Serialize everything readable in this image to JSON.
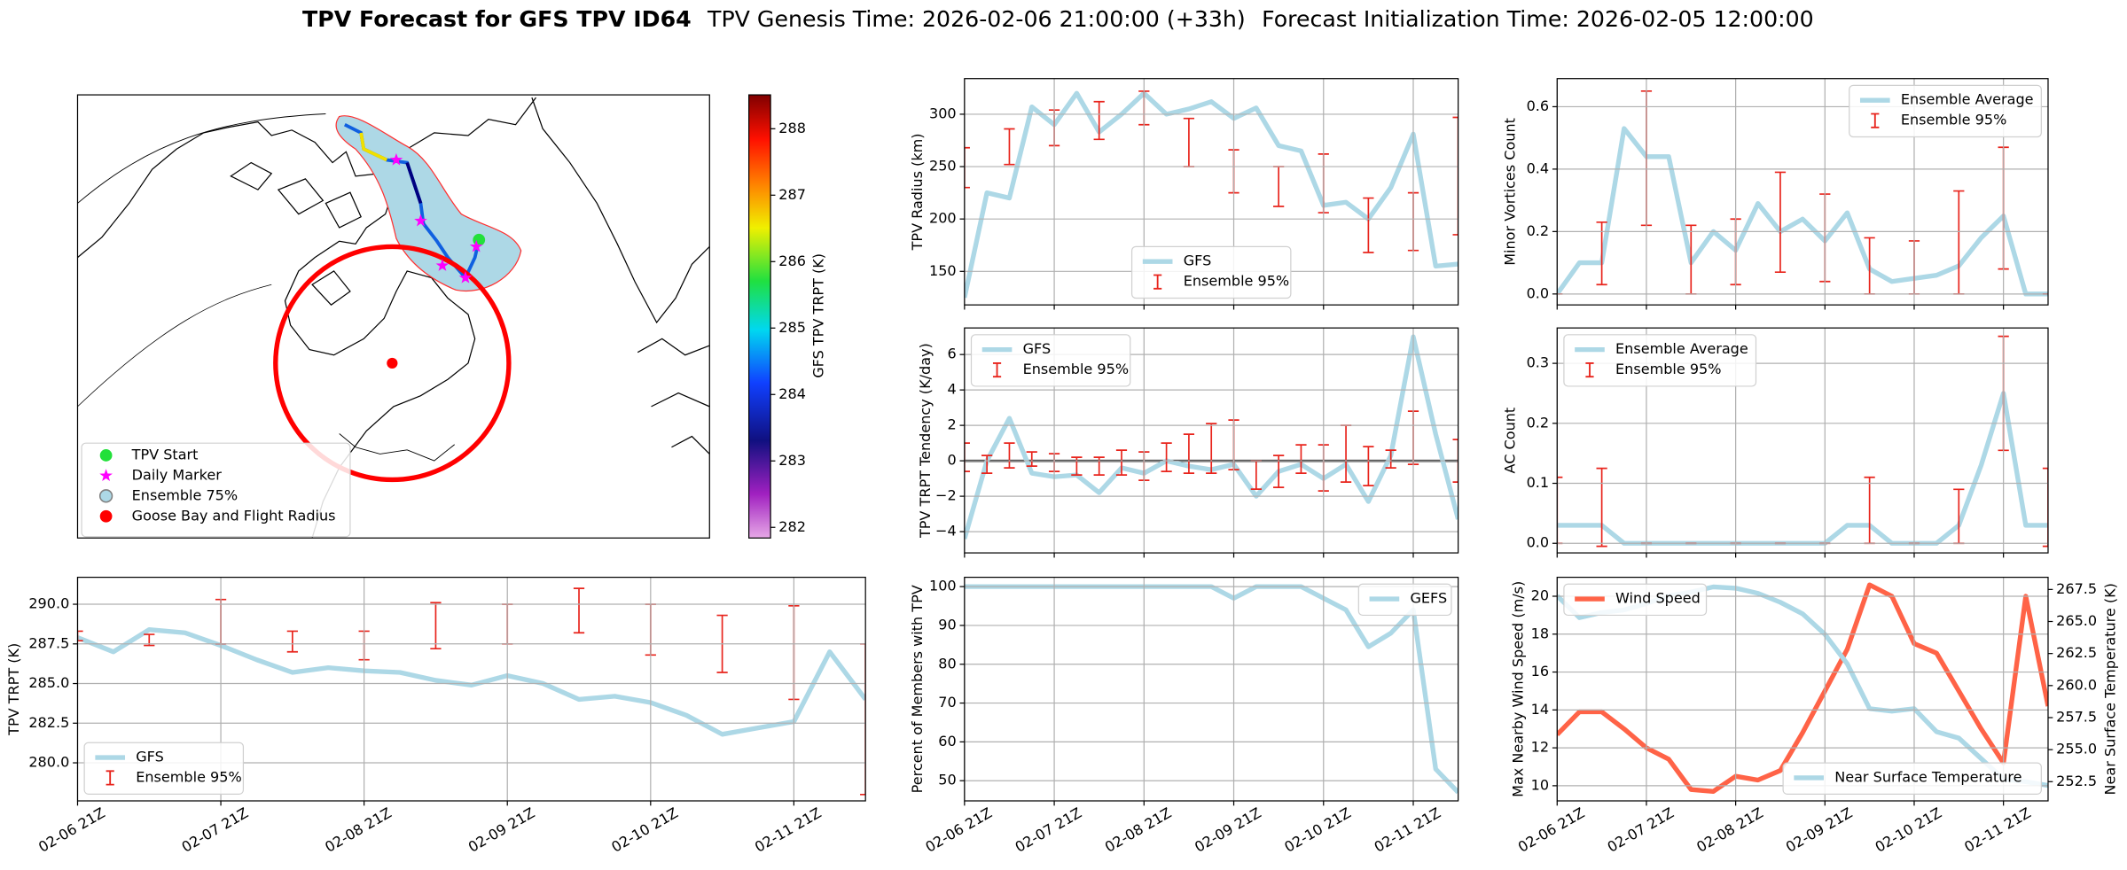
{
  "title": "TPV Forecast for GFS TPV ID64",
  "genesis": "TPV Genesis Time: 2026-02-06 21:00:00 (+33h)",
  "initialization": "Forecast Initialization Time: 2026-02-05 12:00:00",
  "chart_data": [
    {
      "type": "map",
      "legend": [
        {
          "name": "TPV Start",
          "color": "#22e03a"
        },
        {
          "name": "Daily Marker",
          "color": "#ff00ff"
        },
        {
          "name": "Ensemble 75%",
          "color": "#add8e6"
        },
        {
          "name": "Goose Bay and Flight Radius",
          "color": "#ff0000"
        }
      ],
      "colorbar": {
        "label": "GFS TPV TRPT (K)",
        "lim": [
          281.84,
          288.51
        ],
        "ticks": [
          282,
          283,
          284,
          285,
          286,
          287,
          288
        ]
      }
    },
    {
      "type": "line",
      "ylabel": "TPV Radius (km)",
      "x": [
        0,
        6,
        12,
        18,
        24,
        30,
        36,
        42,
        48,
        54,
        60,
        66,
        72,
        78,
        84,
        90,
        96,
        102,
        108,
        114,
        120,
        126,
        132
      ],
      "xlim": [
        0,
        132
      ],
      "xticks": [
        0,
        24,
        48,
        72,
        96,
        120
      ],
      "ylim": [
        118,
        334
      ],
      "yticks": [
        150,
        200,
        250,
        300
      ],
      "grid": true,
      "legend": "lower center",
      "series": [
        {
          "name": "GFS",
          "color": "#add8e6",
          "values": [
            125,
            225,
            220,
            307,
            290,
            320,
            283,
            300,
            320,
            300,
            305,
            312,
            296,
            306,
            270,
            265,
            213,
            216,
            200,
            230,
            281,
            155,
            157
          ]
        }
      ],
      "errorbars": {
        "name": "Ensemble 95%",
        "color": "#e8241c",
        "x": [
          0,
          12,
          24,
          36,
          48,
          60,
          72,
          84,
          96,
          108,
          120,
          132
        ],
        "values": [
          249,
          269,
          287,
          294,
          306,
          273,
          245.5,
          231,
          234,
          194,
          197.5,
          241
        ],
        "errors": [
          19,
          17,
          17,
          18,
          16,
          23,
          20.5,
          19,
          28,
          26,
          27.5,
          56
        ]
      }
    },
    {
      "type": "line",
      "ylabel": "Minor Vortices Count",
      "x": [
        0,
        6,
        12,
        18,
        24,
        30,
        36,
        42,
        48,
        54,
        60,
        66,
        72,
        78,
        84,
        90,
        96,
        102,
        108,
        114,
        120,
        126,
        132
      ],
      "xlim": [
        0,
        132
      ],
      "xticks": [
        0,
        24,
        48,
        72,
        96,
        120
      ],
      "ylim": [
        -0.035,
        0.69
      ],
      "yticks": [
        {
          "value": 0,
          "label": "0.0"
        },
        {
          "value": 0.2,
          "label": "0.2"
        },
        {
          "value": 0.4,
          "label": "0.4"
        },
        {
          "value": 0.6,
          "label": "0.6"
        }
      ],
      "grid": true,
      "legend": "upper right",
      "series": [
        {
          "name": "Ensemble Average",
          "color": "#add8e6",
          "values": [
            0.0,
            0.1,
            0.1,
            0.53,
            0.44,
            0.44,
            0.1,
            0.2,
            0.14,
            0.29,
            0.2,
            0.24,
            0.17,
            0.26,
            0.08,
            0.04,
            0.05,
            0.06,
            0.09,
            0.18,
            0.25,
            0.0,
            0.0
          ]
        }
      ],
      "errorbars": {
        "name": "Ensemble 95%",
        "color": "#e8241c",
        "x": [
          0,
          12,
          24,
          36,
          48,
          60,
          72,
          84,
          96,
          108,
          120,
          132
        ],
        "values": [
          0,
          0.13,
          0.435,
          0.11,
          0.135,
          0.23,
          0.18,
          0.09,
          0.085,
          0.165,
          0.275,
          0
        ],
        "errors": [
          0,
          0.1,
          0.215,
          0.11,
          0.105,
          0.16,
          0.14,
          0.09,
          0.085,
          0.165,
          0.195,
          0
        ]
      }
    },
    {
      "type": "line",
      "ylabel": "TPV TRPT Tendency (K/day)",
      "x": [
        0,
        6,
        12,
        18,
        24,
        30,
        36,
        42,
        48,
        54,
        60,
        66,
        72,
        78,
        84,
        90,
        96,
        102,
        108,
        114,
        120,
        126,
        132
      ],
      "xlim": [
        0,
        132
      ],
      "xticks": [
        0,
        24,
        48,
        72,
        96,
        120
      ],
      "ylim": [
        -5.2,
        7.5
      ],
      "yticks": [
        {
          "value": -4,
          "label": "−4"
        },
        {
          "value": -2,
          "label": "−2"
        },
        0,
        2,
        4,
        6
      ],
      "grid": true,
      "legend": "upper left",
      "hline": 0,
      "series": [
        {
          "name": "GFS",
          "color": "#add8e6",
          "values": [
            -4.4,
            0,
            2.4,
            -0.7,
            -0.9,
            -0.8,
            -1.8,
            -0.4,
            -0.7,
            0,
            -0.3,
            -0.5,
            -0.2,
            -2,
            -0.6,
            -0.2,
            -1,
            -0.2,
            -2.3,
            0.3,
            7,
            1.5,
            -3.3
          ]
        }
      ],
      "errorbars": {
        "name": "Ensemble 95%",
        "color": "#e8241c",
        "x": [
          0,
          6,
          12,
          18,
          24,
          30,
          36,
          42,
          48,
          54,
          60,
          66,
          72,
          78,
          84,
          90,
          96,
          102,
          108,
          114,
          120,
          132
        ],
        "values": [
          0.2,
          -0.2,
          0.3,
          0.1,
          -0.1,
          -0.3,
          -0.3,
          -0.1,
          -0.3,
          0.2,
          0.4,
          0.7,
          0.9,
          -0.8,
          -0.6,
          0.1,
          -0.4,
          0.4,
          -0.3,
          0.1,
          1.3,
          0
        ],
        "errors": [
          0.8,
          0.5,
          0.7,
          0.4,
          0.5,
          0.5,
          0.5,
          0.7,
          0.8,
          0.8,
          1.1,
          1.4,
          1.4,
          0.8,
          0.9,
          0.8,
          1.3,
          1.6,
          1.1,
          0.5,
          1.5,
          1.2
        ]
      }
    },
    {
      "type": "line",
      "ylabel": "AC Count",
      "x": [
        0,
        6,
        12,
        18,
        24,
        30,
        36,
        42,
        48,
        54,
        60,
        66,
        72,
        78,
        84,
        90,
        96,
        102,
        108,
        114,
        120,
        126,
        132
      ],
      "xlim": [
        0,
        132
      ],
      "xticks": [
        0,
        24,
        48,
        72,
        96,
        120
      ],
      "ylim": [
        -0.016,
        0.359
      ],
      "yticks": [
        {
          "value": 0,
          "label": "0.0"
        },
        {
          "value": 0.1,
          "label": "0.1"
        },
        {
          "value": 0.2,
          "label": "0.2"
        },
        {
          "value": 0.3,
          "label": "0.3"
        }
      ],
      "grid": true,
      "legend": "upper left",
      "series": [
        {
          "name": "Ensemble Average",
          "color": "#add8e6",
          "values": [
            0.03,
            0.03,
            0.03,
            0,
            0,
            0,
            0,
            0,
            0,
            0,
            0,
            0,
            0,
            0.03,
            0.03,
            0,
            0,
            0,
            0.03,
            0.13,
            0.25,
            0.03,
            0.03
          ]
        }
      ],
      "errorbars": {
        "name": "Ensemble 95%",
        "color": "#e8241c",
        "x": [
          0,
          12,
          24,
          36,
          48,
          60,
          72,
          84,
          96,
          108,
          120,
          132
        ],
        "values": [
          0.055,
          0.06,
          0,
          0,
          0,
          0,
          0,
          0.055,
          0,
          0.045,
          0.25,
          0.06
        ],
        "errors": [
          0.055,
          0.065,
          0,
          0,
          0,
          0,
          0,
          0.055,
          0,
          0.045,
          0.095,
          0.065
        ]
      }
    },
    {
      "type": "line",
      "ylabel": "TPV TRPT (K)",
      "x": [
        0,
        6,
        12,
        18,
        24,
        30,
        36,
        42,
        48,
        54,
        60,
        66,
        72,
        78,
        84,
        90,
        96,
        102,
        108,
        114,
        120,
        126,
        132
      ],
      "xlim": [
        0,
        132
      ],
      "xticks": [
        {
          "value": 0,
          "label": "02-06 21Z"
        },
        {
          "value": 24,
          "label": "02-07 21Z"
        },
        {
          "value": 48,
          "label": "02-08 21Z"
        },
        {
          "value": 72,
          "label": "02-09 21Z"
        },
        {
          "value": 96,
          "label": "02-10 21Z"
        },
        {
          "value": 120,
          "label": "02-11 21Z"
        }
      ],
      "ylim": [
        277.6,
        291.7
      ],
      "yticks": [
        {
          "value": 280,
          "label": "280.0"
        },
        {
          "value": 282.5,
          "label": "282.5"
        },
        {
          "value": 285,
          "label": "285.0"
        },
        {
          "value": 287.5,
          "label": "287.5"
        },
        {
          "value": 290,
          "label": "290.0"
        }
      ],
      "grid": true,
      "legend": "lower left",
      "series": [
        {
          "name": "GFS",
          "color": "#add8e6",
          "values": [
            287.9,
            287.0,
            288.4,
            288.2,
            287.4,
            286.5,
            285.7,
            286.0,
            285.8,
            285.7,
            285.2,
            284.9,
            285.5,
            285.0,
            284.0,
            284.2,
            283.8,
            283.0,
            281.8,
            282.2,
            282.6,
            287.0,
            284.0
          ]
        }
      ],
      "errorbars": {
        "name": "Ensemble 95%",
        "color": "#e8241c",
        "x": [
          0,
          12,
          24,
          36,
          48,
          60,
          72,
          84,
          96,
          108,
          120,
          132
        ],
        "values": [
          288.0,
          287.75,
          288.9,
          287.65,
          287.4,
          288.65,
          288.75,
          289.6,
          288.4,
          287.5,
          286.95,
          282.75
        ],
        "errors": [
          0.3,
          0.35,
          1.4,
          0.65,
          0.9,
          1.45,
          1.25,
          1.4,
          1.6,
          1.8,
          2.95,
          4.75
        ]
      }
    },
    {
      "type": "line",
      "ylabel": "Percent of Members with TPV",
      "x": [
        0,
        6,
        12,
        18,
        24,
        30,
        36,
        42,
        48,
        54,
        60,
        66,
        72,
        78,
        84,
        90,
        96,
        102,
        108,
        114,
        120,
        126,
        132
      ],
      "xlim": [
        0,
        132
      ],
      "xticks": [
        {
          "value": 0,
          "label": "02-06 21Z"
        },
        {
          "value": 24,
          "label": "02-07 21Z"
        },
        {
          "value": 48,
          "label": "02-08 21Z"
        },
        {
          "value": 72,
          "label": "02-09 21Z"
        },
        {
          "value": 96,
          "label": "02-10 21Z"
        },
        {
          "value": 120,
          "label": "02-11 21Z"
        }
      ],
      "ylim": [
        44.8,
        102.4
      ],
      "yticks": [
        50,
        60,
        70,
        80,
        90,
        100
      ],
      "grid": true,
      "legend": "upper right",
      "series": [
        {
          "name": "GEFS",
          "color": "#add8e6",
          "values": [
            100,
            100,
            100,
            100,
            100,
            100,
            100,
            100,
            100,
            100,
            100,
            100,
            97,
            100,
            100,
            100,
            97,
            94,
            84.5,
            88,
            94,
            53,
            47
          ]
        }
      ]
    },
    {
      "type": "line",
      "ylabel": "Max Nearby Wind Speed (m/s)",
      "ylabel_color": "#ff6347",
      "y2label": "Near Surface Temperature (K)",
      "y2label_color": "#4169e1",
      "x": [
        0,
        6,
        12,
        18,
        24,
        30,
        36,
        42,
        48,
        54,
        60,
        66,
        72,
        78,
        84,
        90,
        96,
        102,
        108,
        114,
        120,
        126,
        132
      ],
      "xlim": [
        0,
        132
      ],
      "xticks": [
        {
          "value": 0,
          "label": "02-06 21Z"
        },
        {
          "value": 24,
          "label": "02-07 21Z"
        },
        {
          "value": 48,
          "label": "02-08 21Z"
        },
        {
          "value": 72,
          "label": "02-09 21Z"
        },
        {
          "value": 96,
          "label": "02-10 21Z"
        },
        {
          "value": 120,
          "label": "02-11 21Z"
        }
      ],
      "ylim": [
        9.2,
        21
      ],
      "yticks": [
        10,
        12,
        14,
        16,
        18,
        20
      ],
      "y2lim": [
        251.0,
        268.45
      ],
      "y2ticks": [
        {
          "value": 252.5,
          "label": "252.5"
        },
        {
          "value": 255,
          "label": "255.0"
        },
        {
          "value": 257.5,
          "label": "257.5"
        },
        {
          "value": 260,
          "label": "260.0"
        },
        {
          "value": 262.5,
          "label": "262.5"
        },
        {
          "value": 265,
          "label": "265.0"
        },
        {
          "value": 267.5,
          "label": "267.5"
        }
      ],
      "grid": true,
      "legend": "upper left",
      "legend2": "lower right",
      "series": [
        {
          "name": "Wind Speed",
          "color": "#ff6347",
          "values": [
            12.7,
            13.9,
            13.9,
            13.0,
            12.0,
            11.4,
            9.8,
            9.7,
            10.5,
            10.3,
            10.8,
            12.8,
            15.0,
            17.2,
            20.6,
            20.0,
            17.5,
            17.0,
            15.0,
            13.0,
            11.2,
            20.0,
            14.2
          ]
        },
        {
          "name": "Near Surface Temperature",
          "color": "#add8e6",
          "axis": "y2",
          "values": [
            267.0,
            265.3,
            265.7,
            265.9,
            266.4,
            267.0,
            267.3,
            267.7,
            267.6,
            267.2,
            266.5,
            265.6,
            264.0,
            261.7,
            258.2,
            258.0,
            258.2,
            256.4,
            255.9,
            254.3,
            252.7,
            252.5,
            252.2
          ]
        }
      ]
    }
  ]
}
